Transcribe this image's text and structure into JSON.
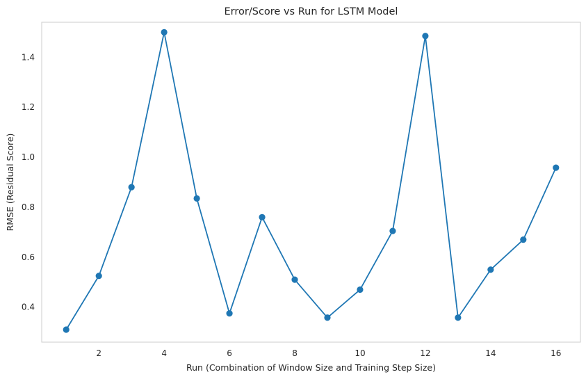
{
  "chart_data": {
    "type": "line",
    "title": "Error/Score vs Run for LSTM Model",
    "xlabel": "Run (Combination of Window Size and Training Step Size)",
    "ylabel": "RMSE (Residual Score)",
    "xlim": [
      0.25,
      16.75
    ],
    "ylim": [
      0.26,
      1.54
    ],
    "x_ticks": [
      2,
      4,
      6,
      8,
      10,
      12,
      14,
      16
    ],
    "x_tick_labels": [
      "2",
      "4",
      "6",
      "8",
      "10",
      "12",
      "14",
      "16"
    ],
    "y_ticks": [
      0.4,
      0.6,
      0.8,
      1.0,
      1.2,
      1.4
    ],
    "y_tick_labels": [
      "0.4",
      "0.6",
      "0.8",
      "1.0",
      "1.2",
      "1.4"
    ],
    "grid": false,
    "series": [
      {
        "color": "#1f77b4",
        "marker": "circle",
        "x": [
          1,
          2,
          3,
          4,
          5,
          6,
          7,
          8,
          9,
          10,
          11,
          12,
          13,
          14,
          15,
          16
        ],
        "values": [
          0.31,
          0.525,
          0.88,
          1.5,
          0.835,
          0.375,
          0.76,
          0.51,
          0.358,
          0.47,
          0.705,
          1.485,
          0.358,
          0.55,
          0.67,
          0.958
        ]
      }
    ]
  }
}
